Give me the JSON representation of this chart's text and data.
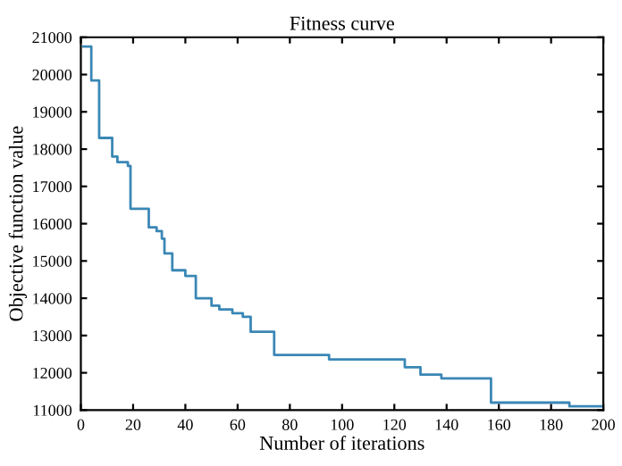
{
  "chart_data": {
    "type": "step",
    "title": "Fitness curve",
    "xlabel": "Number of iterations",
    "ylabel": "Objective function value",
    "series": [
      {
        "color": "#3a87b5",
        "x": [
          1,
          4,
          7,
          12,
          14,
          18,
          19,
          26,
          29,
          31,
          32,
          35,
          40,
          44,
          50,
          53,
          58,
          62,
          65,
          74,
          95,
          124,
          130,
          138,
          157,
          187,
          200
        ],
        "values": [
          20750,
          19840,
          18300,
          17800,
          17650,
          17550,
          16400,
          15900,
          15800,
          15600,
          15200,
          14750,
          14600,
          14000,
          13800,
          13700,
          13600,
          13500,
          13100,
          12480,
          12360,
          12150,
          11950,
          11850,
          11200,
          11100,
          11100
        ]
      }
    ],
    "xlim": [
      0,
      200
    ],
    "xticks": [
      0,
      20,
      40,
      60,
      80,
      100,
      120,
      140,
      160,
      180,
      200
    ],
    "ylim": [
      11000,
      21000
    ],
    "yticks": [
      11000,
      12000,
      13000,
      14000,
      15000,
      16000,
      17000,
      18000,
      19000,
      20000,
      21000
    ],
    "grid": false,
    "legend": false
  }
}
